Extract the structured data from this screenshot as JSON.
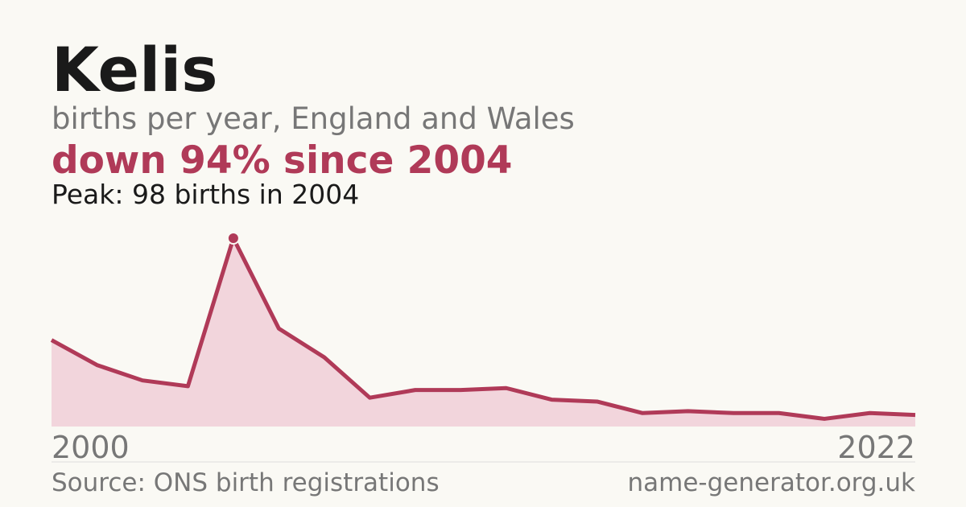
{
  "chart_data": {
    "type": "area",
    "title": "Kelis",
    "subtitle": "births per year, England and Wales",
    "headline": "down 94% since 2004",
    "annotation": "Peak: 98 births in 2004",
    "categories": [
      "2000",
      null,
      null,
      null,
      null,
      null,
      null,
      null,
      null,
      null,
      null,
      null,
      null,
      null,
      null,
      null,
      null,
      null,
      null,
      "2022"
    ],
    "values": [
      45,
      32,
      24,
      21,
      98,
      51,
      36,
      15,
      19,
      19,
      20,
      14,
      13,
      7,
      8,
      7,
      7,
      4,
      7,
      6
    ],
    "color": "#b03a58",
    "fill": "#f2d5dc",
    "ylim": [
      0,
      98
    ],
    "peak_index": 4,
    "source": "Source: ONS birth registrations",
    "site": "name-generator.org.uk"
  }
}
